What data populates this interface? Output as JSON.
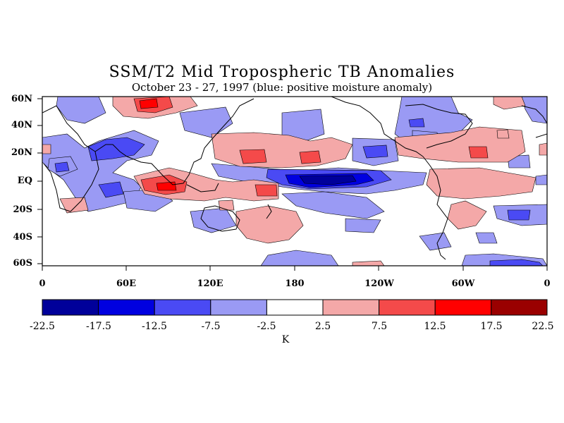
{
  "title": "SSM/T2 Mid Tropospheric TB Anomalies",
  "subtitle": "October 23 - 27, 1997 (blue: positive moisture anomaly)",
  "y_labels": [
    "60N",
    "40N",
    "20N",
    "EQ",
    "20S",
    "40S",
    "60S"
  ],
  "x_labels": [
    "0",
    "60E",
    "120E",
    "180",
    "120W",
    "60W",
    "0"
  ],
  "colorbar": {
    "colors": [
      "#00009a",
      "#0000e0",
      "#4a4af4",
      "#9a9af4",
      "#ffffff",
      "#f4a8a8",
      "#f44a4a",
      "#ff0000",
      "#9a0000"
    ],
    "labels": [
      "-22.5",
      "-17.5",
      "-12.5",
      "-7.5",
      "-2.5",
      "2.5",
      "7.5",
      "12.5",
      "17.5",
      "22.5"
    ],
    "units": "K"
  }
}
